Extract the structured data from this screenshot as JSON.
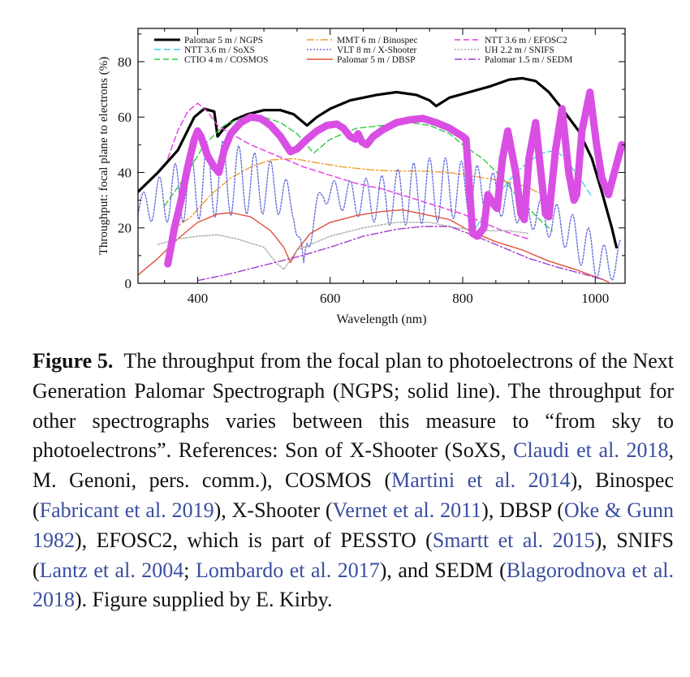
{
  "chart_data": {
    "type": "line",
    "xlabel": "Wavelength (nm)",
    "ylabel": "Throughput: focal plane to electrons (%)",
    "xlim": [
      310,
      1045
    ],
    "ylim": [
      0,
      92
    ],
    "xticks": [
      400,
      600,
      800,
      1000
    ],
    "yticks": [
      0,
      20,
      40,
      60,
      80
    ],
    "xtick_labels": [
      "400",
      "600",
      "800",
      "1000"
    ],
    "ytick_labels": [
      "0",
      "20",
      "40",
      "60",
      "80"
    ],
    "grid": false,
    "legend_position": "top",
    "series": [
      {
        "name": "Palomar 5 m / NGPS",
        "color": "#000000",
        "width": 3.2,
        "dash": "",
        "points": [
          [
            310,
            33
          ],
          [
            340,
            40
          ],
          [
            370,
            48
          ],
          [
            395,
            60
          ],
          [
            410,
            63
          ],
          [
            425,
            62
          ],
          [
            430,
            53
          ],
          [
            440,
            56
          ],
          [
            455,
            59
          ],
          [
            475,
            61
          ],
          [
            500,
            62.5
          ],
          [
            525,
            62.5
          ],
          [
            545,
            61
          ],
          [
            565,
            57
          ],
          [
            580,
            60
          ],
          [
            600,
            63
          ],
          [
            630,
            66
          ],
          [
            670,
            68
          ],
          [
            700,
            69
          ],
          [
            730,
            68
          ],
          [
            750,
            66
          ],
          [
            760,
            64
          ],
          [
            780,
            67
          ],
          [
            810,
            69
          ],
          [
            840,
            71
          ],
          [
            870,
            73.5
          ],
          [
            890,
            74
          ],
          [
            910,
            73
          ],
          [
            930,
            69
          ],
          [
            950,
            63
          ],
          [
            975,
            55
          ],
          [
            995,
            45
          ],
          [
            1010,
            33
          ],
          [
            1025,
            20
          ],
          [
            1032,
            13
          ]
        ]
      },
      {
        "name": "NTT 3.6 m / SoXS",
        "color": "#49cfe0",
        "width": 1.4,
        "dash": "8,4",
        "points": [
          [
            820,
            20
          ],
          [
            840,
            28
          ],
          [
            860,
            34
          ],
          [
            880,
            40
          ],
          [
            900,
            44
          ],
          [
            920,
            47
          ],
          [
            940,
            48
          ],
          [
            955,
            45
          ],
          [
            970,
            40
          ],
          [
            985,
            35
          ],
          [
            995,
            31
          ]
        ]
      },
      {
        "name": "CTIO 4 m / COSMOS",
        "color": "#2ecc40",
        "width": 1.4,
        "dash": "7,4",
        "points": [
          [
            350,
            28
          ],
          [
            380,
            38
          ],
          [
            410,
            50
          ],
          [
            440,
            57
          ],
          [
            470,
            60
          ],
          [
            500,
            60
          ],
          [
            525,
            58
          ],
          [
            550,
            54
          ],
          [
            575,
            47
          ],
          [
            600,
            52
          ],
          [
            640,
            56
          ],
          [
            680,
            57
          ],
          [
            720,
            58
          ],
          [
            750,
            57
          ],
          [
            780,
            54
          ],
          [
            800,
            50
          ],
          [
            830,
            45
          ],
          [
            860,
            38
          ],
          [
            880,
            32
          ],
          [
            900,
            27
          ],
          [
            920,
            22
          ],
          [
            935,
            19
          ]
        ]
      },
      {
        "name": "MMT 6 m / Binospec",
        "color": "#f0a030",
        "width": 1.4,
        "dash": "9,3,2,3",
        "points": [
          [
            360,
            19
          ],
          [
            390,
            24
          ],
          [
            420,
            32
          ],
          [
            450,
            38
          ],
          [
            480,
            42
          ],
          [
            510,
            44.5
          ],
          [
            545,
            45
          ],
          [
            580,
            43.5
          ],
          [
            620,
            42
          ],
          [
            660,
            41
          ],
          [
            700,
            40.5
          ],
          [
            740,
            40.5
          ],
          [
            780,
            40
          ],
          [
            820,
            38.5
          ],
          [
            860,
            37
          ],
          [
            895,
            35
          ],
          [
            920,
            32
          ],
          [
            935,
            31
          ]
        ]
      },
      {
        "name": "VLT 8 m / X-Shooter",
        "color": "#6670d8",
        "width": 1.4,
        "dash": "2,2",
        "osc": true,
        "points": [
          [
            310,
            27,
            4
          ],
          [
            340,
            30,
            8
          ],
          [
            360,
            32,
            10
          ],
          [
            380,
            34,
            12
          ],
          [
            400,
            36,
            13
          ],
          [
            430,
            38,
            14
          ],
          [
            470,
            37,
            12
          ],
          [
            520,
            34,
            9
          ],
          [
            545,
            28,
            5
          ],
          [
            555,
            12,
            6
          ],
          [
            560,
            4,
            4
          ],
          [
            565,
            16,
            6
          ],
          [
            590,
            33,
            4
          ],
          [
            630,
            31,
            6
          ],
          [
            680,
            30,
            9
          ],
          [
            720,
            32,
            11
          ],
          [
            760,
            34,
            12
          ],
          [
            800,
            34,
            10
          ],
          [
            830,
            34,
            8
          ],
          [
            860,
            31,
            7
          ],
          [
            890,
            27,
            6
          ],
          [
            920,
            24,
            6
          ],
          [
            950,
            21,
            7
          ],
          [
            980,
            14,
            8
          ],
          [
            1000,
            10,
            8
          ],
          [
            1020,
            6,
            6
          ],
          [
            1040,
            10,
            6
          ]
        ]
      },
      {
        "name": "Palomar 5 m / DBSP",
        "color": "#e0503a",
        "width": 1.4,
        "dash": "",
        "points": [
          [
            310,
            3
          ],
          [
            340,
            9
          ],
          [
            370,
            16
          ],
          [
            400,
            22
          ],
          [
            430,
            25
          ],
          [
            450,
            25.5
          ],
          [
            480,
            24
          ],
          [
            510,
            19
          ],
          [
            530,
            13
          ],
          [
            540,
            7.5
          ],
          [
            550,
            12
          ],
          [
            570,
            18
          ],
          [
            600,
            22
          ],
          [
            640,
            24.5
          ],
          [
            680,
            26
          ],
          [
            710,
            26.5
          ],
          [
            740,
            25
          ],
          [
            760,
            24
          ],
          [
            780,
            23
          ],
          [
            810,
            19
          ],
          [
            850,
            15
          ],
          [
            890,
            12
          ],
          [
            930,
            8
          ],
          [
            970,
            5
          ],
          [
            1010,
            1.5
          ],
          [
            1020,
            0.5
          ]
        ]
      },
      {
        "name": "NTT 3.6 m / EFOSC2",
        "color": "#e23ce0",
        "width": 1.4,
        "dash": "7,4",
        "points": [
          [
            355,
            45
          ],
          [
            370,
            55
          ],
          [
            385,
            62
          ],
          [
            400,
            65
          ],
          [
            415,
            62
          ],
          [
            430,
            57
          ],
          [
            450,
            54
          ],
          [
            480,
            50
          ],
          [
            520,
            46
          ],
          [
            560,
            42
          ],
          [
            600,
            39
          ],
          [
            640,
            36
          ],
          [
            680,
            34
          ],
          [
            720,
            31
          ],
          [
            760,
            28
          ],
          [
            800,
            25
          ],
          [
            830,
            22
          ],
          [
            860,
            19
          ],
          [
            885,
            17
          ],
          [
            900,
            16
          ]
        ]
      },
      {
        "name": "UH 2.2 m / SNIFS",
        "color": "#aaaaaa",
        "width": 1.4,
        "dash": "2,2",
        "points": [
          [
            340,
            14
          ],
          [
            370,
            16
          ],
          [
            400,
            17
          ],
          [
            430,
            17.5
          ],
          [
            460,
            16
          ],
          [
            500,
            13
          ],
          [
            520,
            7
          ],
          [
            530,
            5
          ],
          [
            550,
            12
          ],
          [
            600,
            17
          ],
          [
            650,
            20
          ],
          [
            700,
            22
          ],
          [
            750,
            22
          ],
          [
            790,
            20
          ],
          [
            830,
            19
          ],
          [
            870,
            19
          ],
          [
            900,
            18
          ]
        ]
      },
      {
        "name": "Palomar 1.5 m / SEDM",
        "color": "#a33ccc",
        "width": 1.4,
        "dash": "9,3,2,3",
        "points": [
          [
            400,
            1
          ],
          [
            450,
            3.5
          ],
          [
            500,
            6.5
          ],
          [
            550,
            9.5
          ],
          [
            600,
            13
          ],
          [
            650,
            17
          ],
          [
            700,
            19.5
          ],
          [
            740,
            20.5
          ],
          [
            780,
            20.5
          ],
          [
            820,
            17
          ],
          [
            860,
            13
          ],
          [
            900,
            9
          ],
          [
            940,
            6
          ],
          [
            980,
            3.5
          ],
          [
            1010,
            1.5
          ]
        ]
      },
      {
        "name": "",
        "color": "#d94fe4",
        "width": 9,
        "dash": "",
        "points": [
          [
            355,
            7
          ],
          [
            365,
            20
          ],
          [
            375,
            30
          ],
          [
            385,
            42
          ],
          [
            395,
            52
          ],
          [
            400,
            55
          ],
          [
            405,
            53
          ],
          [
            415,
            46
          ],
          [
            425,
            42
          ],
          [
            432,
            40
          ],
          [
            440,
            48
          ],
          [
            450,
            54
          ],
          [
            465,
            58
          ],
          [
            480,
            60
          ],
          [
            495,
            59.5
          ],
          [
            510,
            57
          ],
          [
            525,
            53
          ],
          [
            540,
            47.5
          ],
          [
            550,
            48.5
          ],
          [
            565,
            52
          ],
          [
            580,
            55
          ],
          [
            595,
            57
          ],
          [
            610,
            57.5
          ],
          [
            620,
            56
          ],
          [
            630,
            53
          ],
          [
            638,
            52
          ],
          [
            642,
            54
          ],
          [
            648,
            51
          ],
          [
            655,
            50
          ],
          [
            665,
            53
          ],
          [
            680,
            55.5
          ],
          [
            700,
            58
          ],
          [
            720,
            59
          ],
          [
            740,
            59.5
          ],
          [
            760,
            58
          ],
          [
            780,
            56
          ],
          [
            800,
            53
          ],
          [
            805,
            52
          ],
          [
            810,
            35
          ],
          [
            815,
            18
          ],
          [
            822,
            17
          ],
          [
            832,
            20
          ],
          [
            838,
            32
          ],
          [
            848,
            28
          ],
          [
            852,
            27
          ],
          [
            860,
            45
          ],
          [
            868,
            55
          ],
          [
            880,
            40
          ],
          [
            888,
            25
          ],
          [
            893,
            23
          ],
          [
            900,
            45
          ],
          [
            910,
            58
          ],
          [
            918,
            40
          ],
          [
            925,
            25
          ],
          [
            930,
            24
          ],
          [
            940,
            48
          ],
          [
            950,
            63
          ],
          [
            960,
            40
          ],
          [
            968,
            30
          ],
          [
            972,
            32
          ],
          [
            980,
            55
          ],
          [
            992,
            69
          ],
          [
            1002,
            50
          ],
          [
            1010,
            38
          ],
          [
            1020,
            32
          ],
          [
            1040,
            50
          ]
        ]
      }
    ]
  },
  "caption": {
    "label": "Figure 5.",
    "text": "The throughput from the focal plan to photoelectrons of the Next Generation Palomar Spectrograph (NGPS; solid line). The throughput for other spectrographs varies between this measure to “from sky to photoelectrons”. References: Son of X-Shooter (SoXS, Claudi et al. 2018, M. Genoni, pers. comm.), COSMOS (Martini et al. 2014), Binospec (Fabricant et al. 2019), X-Shooter (Vernet et al. 2011), DBSP (Oke & Gunn 1982), EFOSC2, which is part of PESSTO (Smartt et al. 2015), SNIFS (Lantz et al. 2004; Lombardo et al. 2017), and SEDM (Blagorodnova et al. 2018). Figure supplied by E. Kirby.",
    "link_color": "#3a4ea0"
  }
}
